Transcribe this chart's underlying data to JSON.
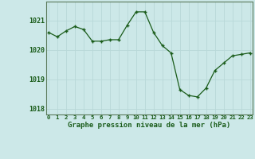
{
  "x": [
    0,
    1,
    2,
    3,
    4,
    5,
    6,
    7,
    8,
    9,
    10,
    11,
    12,
    13,
    14,
    15,
    16,
    17,
    18,
    19,
    20,
    21,
    22,
    23
  ],
  "y": [
    1020.6,
    1020.45,
    1020.65,
    1020.8,
    1020.7,
    1020.3,
    1020.3,
    1020.35,
    1020.35,
    1020.85,
    1021.3,
    1021.3,
    1020.6,
    1020.15,
    1019.9,
    1018.65,
    1018.45,
    1018.4,
    1018.7,
    1019.3,
    1019.55,
    1019.8,
    1019.85,
    1019.9
  ],
  "line_color": "#1a5c1a",
  "marker_color": "#1a5c1a",
  "bg_color": "#cce8e8",
  "grid_color": "#b8d8d8",
  "xlabel": "Graphe pression niveau de la mer (hPa)",
  "xlabel_color": "#1a5c1a",
  "tick_color": "#1a5c1a",
  "ylim": [
    1017.8,
    1021.65
  ],
  "yticks": [
    1018,
    1019,
    1020,
    1021
  ],
  "xticks": [
    0,
    1,
    2,
    3,
    4,
    5,
    6,
    7,
    8,
    9,
    10,
    11,
    12,
    13,
    14,
    15,
    16,
    17,
    18,
    19,
    20,
    21,
    22,
    23
  ],
  "figsize": [
    3.2,
    2.0
  ],
  "dpi": 100
}
